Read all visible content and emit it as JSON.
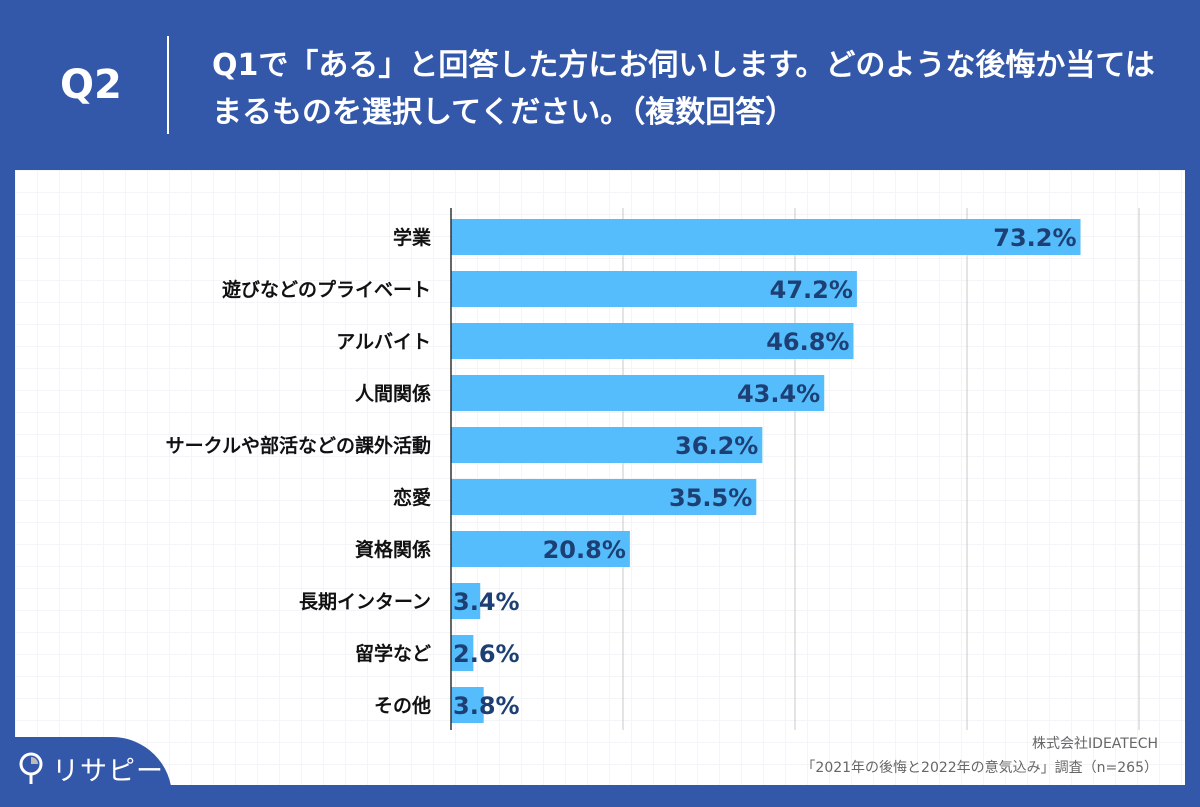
{
  "header": {
    "question_number": "Q2",
    "question": "Q1で「ある」と回答した方にお伺いします。どのような後悔か当てはまるものを選択してください。（複数回答）"
  },
  "chart_data": {
    "type": "bar",
    "orientation": "horizontal",
    "categories": [
      "学業",
      "遊びなどのプライベート",
      "アルバイト",
      "人間関係",
      "サークルや部活などの課外活動",
      "恋愛",
      "資格関係",
      "長期インターン",
      "留学など",
      "その他"
    ],
    "values": [
      73.2,
      47.2,
      46.8,
      43.4,
      36.2,
      35.5,
      20.8,
      3.4,
      2.6,
      3.8
    ],
    "labels": [
      "73.2%",
      "47.2%",
      "46.8%",
      "43.4%",
      "36.2%",
      "35.5%",
      "20.8%",
      "3.4%",
      "2.6%",
      "3.8%"
    ],
    "xlim": [
      0,
      80
    ],
    "grid": true,
    "bar_color": "#55bdfb",
    "label_color": "#1d3f74"
  },
  "footer": {
    "company": "株式会社IDEATECH",
    "survey": "「2021年の後悔と2022年の意気込み」調査（n=265）",
    "logo": "リサピー"
  },
  "colors": {
    "background": "#3357a9"
  }
}
